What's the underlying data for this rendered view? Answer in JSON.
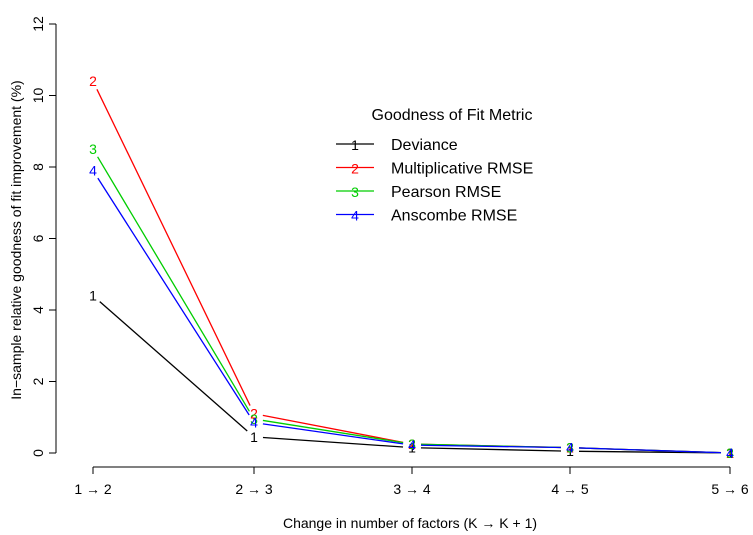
{
  "chart_data": {
    "type": "line",
    "categories": [
      "1 → 2",
      "2 → 3",
      "3 → 4",
      "4 → 5",
      "5 → 6"
    ],
    "xlabel": "Change in number of factors (K → K + 1)",
    "ylabel": "In−sample relative goodness of fit improvement (%)",
    "ylim": [
      0,
      12
    ],
    "yticks": [
      "0",
      "2",
      "4",
      "6",
      "8",
      "10",
      "12"
    ],
    "grid": false,
    "legend": {
      "title": "Goodness of Fit Metric",
      "placement": "top-right"
    },
    "series": [
      {
        "name": "Deviance",
        "marker": "1",
        "color": "#000000",
        "values": [
          4.4,
          0.45,
          0.15,
          0.05,
          0.0
        ]
      },
      {
        "name": "Multiplicative RMSE",
        "marker": "2",
        "color": "#ff0000",
        "values": [
          10.4,
          1.1,
          0.25,
          0.15,
          0.0
        ]
      },
      {
        "name": "Pearson RMSE",
        "marker": "3",
        "color": "#00cd00",
        "values": [
          8.5,
          0.95,
          0.25,
          0.15,
          0.0
        ]
      },
      {
        "name": "Anscombe RMSE",
        "marker": "4",
        "color": "#0000ff",
        "values": [
          7.9,
          0.85,
          0.22,
          0.15,
          0.0
        ]
      }
    ]
  }
}
